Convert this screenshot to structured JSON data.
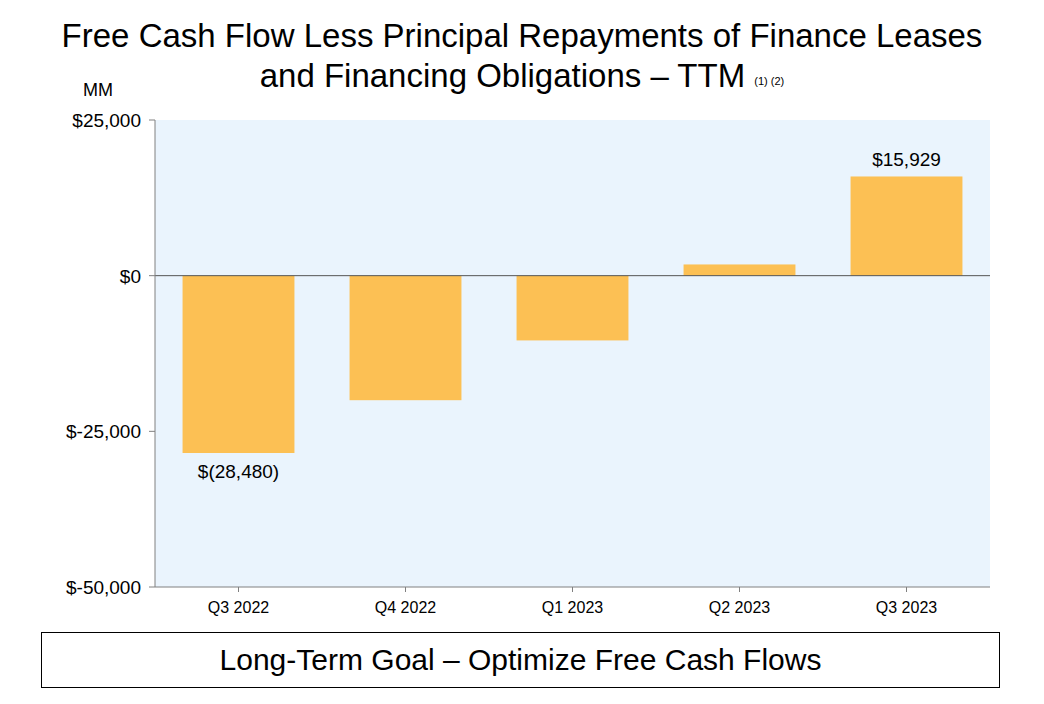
{
  "chart_data": {
    "type": "bar",
    "title": "Free Cash Flow Less Principal Repayments of Finance Leases and Financing Obligations – TTM",
    "annotations": [
      "(1) (2)",
      "Long-Term Goal – Optimize Free Cash Flows"
    ],
    "y_label": "MM",
    "categories": [
      "Q3 2022",
      "Q4 2022",
      "Q1 2023",
      "Q2 2023",
      "Q3 2023"
    ],
    "values": [
      -28480,
      -20000,
      -10400,
      1800,
      15929
    ],
    "value_labels": [
      "$(28,480)",
      null,
      null,
      null,
      "$15,929"
    ],
    "data_labels": true,
    "color": "#fcc054",
    "ylim": [
      -50000,
      25000
    ],
    "yticks": [
      {
        "value": -50000,
        "label": "$-50,000"
      },
      {
        "value": -25000,
        "label": "$-25,000"
      },
      {
        "value": 0,
        "label": "$0"
      },
      {
        "value": 25000,
        "label": "$25,000"
      }
    ],
    "grid": false
  }
}
